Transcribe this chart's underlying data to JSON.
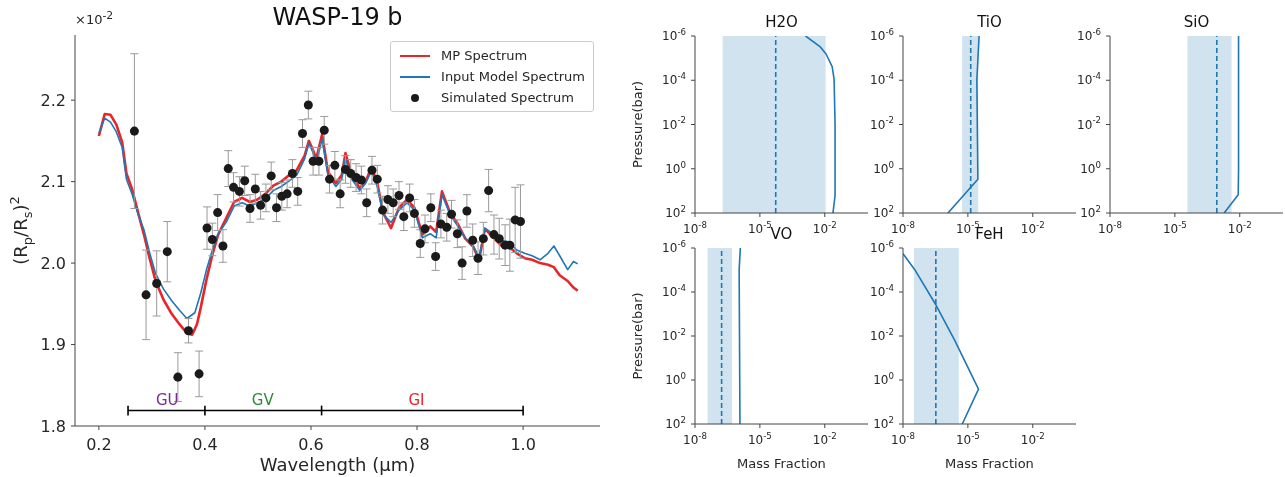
{
  "chart_data": [
    {
      "type": "line",
      "title": "WASP-19 b",
      "xlabel": "Wavelength (μm)",
      "ylabel": "(R$_{p}$/R$_{s}$)$^{2}$",
      "xlim": [
        0.155,
        1.145
      ],
      "ylim": [
        1.8,
        2.28
      ],
      "xticks": [
        0.2,
        0.4,
        0.6,
        0.8,
        {
          "value": 1,
          "label": "1.0"
        }
      ],
      "yticks": [
        1.8,
        1.9,
        {
          "value": 2,
          "label": "2.0"
        },
        2.1,
        2.2
      ],
      "legend": "top right",
      "annotations": [
        "×10$^{-2}$",
        {
          "text": "GU",
          "x": 0.329,
          "y": 1.819
        },
        {
          "text": "GV",
          "x": 0.509,
          "y": 1.819
        },
        {
          "text": "GI",
          "x": 0.799,
          "y": 1.819
        }
      ],
      "series": [
        {
          "name": "MP Spectrum",
          "type": "line",
          "color": "#e8262a",
          "x": [
            0.2,
            0.211,
            0.222,
            0.233,
            0.244,
            0.252,
            0.263,
            0.274,
            0.285,
            0.296,
            0.307,
            0.322,
            0.337,
            0.352,
            0.366,
            0.376,
            0.385,
            0.392,
            0.403,
            0.414,
            0.425,
            0.44,
            0.455,
            0.47,
            0.485,
            0.499,
            0.514,
            0.529,
            0.544,
            0.559,
            0.573,
            0.588,
            0.596,
            0.603,
            0.61,
            0.621,
            0.632,
            0.647,
            0.658,
            0.665,
            0.677,
            0.692,
            0.703,
            0.714,
            0.725,
            0.736,
            0.751,
            0.766,
            0.781,
            0.795,
            0.81,
            0.825,
            0.836,
            0.847,
            0.862,
            0.877,
            0.891,
            0.906,
            0.917,
            0.928,
            0.943,
            0.958,
            0.973,
            0.988,
            1.003,
            1.017,
            1.032,
            1.047,
            1.058,
            1.069,
            1.084,
            1.095,
            1.103
          ],
          "values": [
            2.156,
            2.183,
            2.182,
            2.17,
            2.148,
            2.11,
            2.09,
            2.062,
            2.035,
            2.005,
            1.978,
            1.955,
            1.938,
            1.925,
            1.914,
            1.912,
            1.925,
            1.945,
            1.98,
            2.01,
            2.035,
            2.055,
            2.075,
            2.08,
            2.075,
            2.078,
            2.085,
            2.095,
            2.1,
            2.108,
            2.114,
            2.132,
            2.15,
            2.14,
            2.128,
            2.158,
            2.112,
            2.098,
            2.108,
            2.135,
            2.108,
            2.092,
            2.1,
            2.118,
            2.098,
            2.062,
            2.043,
            2.068,
            2.078,
            2.068,
            2.035,
            2.045,
            2.038,
            2.088,
            2.062,
            2.048,
            2.03,
            2.02,
            2.004,
            2.042,
            2.032,
            2.022,
            2.02,
            2.012,
            2.006,
            2.004,
            2.0,
            1.998,
            1.995,
            1.985,
            1.978,
            1.97,
            1.966
          ]
        },
        {
          "name": "Input Model Spectrum",
          "type": "line",
          "color": "#1f77b4",
          "x": [
            0.2,
            0.211,
            0.222,
            0.233,
            0.244,
            0.252,
            0.263,
            0.274,
            0.285,
            0.296,
            0.307,
            0.322,
            0.337,
            0.352,
            0.366,
            0.381,
            0.392,
            0.403,
            0.414,
            0.425,
            0.44,
            0.455,
            0.47,
            0.485,
            0.499,
            0.514,
            0.529,
            0.544,
            0.559,
            0.573,
            0.588,
            0.596,
            0.603,
            0.61,
            0.621,
            0.632,
            0.647,
            0.658,
            0.665,
            0.677,
            0.692,
            0.703,
            0.714,
            0.725,
            0.736,
            0.751,
            0.766,
            0.781,
            0.795,
            0.81,
            0.825,
            0.836,
            0.847,
            0.862,
            0.877,
            0.891,
            0.906,
            0.917,
            0.928,
            0.943,
            0.958,
            0.973,
            0.988,
            1.003,
            1.017,
            1.032,
            1.047,
            1.058,
            1.069,
            1.084,
            1.095,
            1.103
          ],
          "values": [
            2.159,
            2.178,
            2.173,
            2.161,
            2.142,
            2.103,
            2.084,
            2.06,
            2.041,
            2.012,
            1.987,
            1.968,
            1.954,
            1.942,
            1.932,
            1.939,
            1.963,
            1.992,
            2.016,
            2.036,
            2.05,
            2.07,
            2.074,
            2.07,
            2.074,
            2.079,
            2.089,
            2.094,
            2.101,
            2.108,
            2.128,
            2.147,
            2.137,
            2.123,
            2.152,
            2.108,
            2.094,
            2.103,
            2.128,
            2.103,
            2.089,
            2.098,
            2.113,
            2.094,
            2.06,
            2.05,
            2.065,
            2.074,
            2.065,
            2.031,
            2.036,
            2.031,
            2.084,
            2.06,
            2.045,
            2.031,
            2.021,
            2.007,
            2.043,
            2.036,
            2.028,
            2.026,
            2.016,
            2.012,
            2.009,
            2.004,
            2.012,
            2.021,
            2.009,
            1.992,
            2.002,
            1.999
          ]
        },
        {
          "name": "Simulated Spectrum",
          "type": "scatter",
          "color": "#1a1a1a",
          "marker": "circle",
          "x": [
            0.267,
            0.289,
            0.309,
            0.329,
            0.349,
            0.369,
            0.389,
            0.404,
            0.414,
            0.424,
            0.434,
            0.444,
            0.454,
            0.465,
            0.475,
            0.485,
            0.495,
            0.505,
            0.515,
            0.525,
            0.535,
            0.545,
            0.555,
            0.565,
            0.575,
            0.584,
            0.595,
            0.604,
            0.615,
            0.625,
            0.635,
            0.645,
            0.655,
            0.665,
            0.675,
            0.685,
            0.695,
            0.705,
            0.715,
            0.725,
            0.735,
            0.745,
            0.755,
            0.766,
            0.775,
            0.786,
            0.795,
            0.806,
            0.815,
            0.826,
            0.835,
            0.845,
            0.856,
            0.865,
            0.876,
            0.885,
            0.894,
            0.905,
            0.915,
            0.925,
            0.935,
            0.945,
            0.955,
            0.966,
            0.975,
            0.985,
            0.995
          ],
          "values": [
            2.162,
            1.961,
            1.975,
            2.014,
            1.86,
            1.917,
            1.864,
            2.043,
            2.029,
            2.062,
            2.021,
            2.116,
            2.093,
            2.088,
            2.101,
            2.067,
            2.091,
            2.071,
            2.08,
            2.107,
            2.068,
            2.082,
            2.085,
            2.11,
            2.088,
            2.159,
            2.194,
            2.125,
            2.125,
            2.163,
            2.103,
            2.12,
            2.085,
            2.115,
            2.11,
            2.105,
            2.102,
            2.074,
            2.114,
            2.103,
            2.065,
            2.078,
            2.074,
            2.083,
            2.057,
            2.08,
            2.061,
            2.024,
            2.042,
            2.068,
            2.008,
            2.048,
            2.044,
            2.06,
            2.036,
            2.0,
            2.064,
            2.028,
            2.006,
            2.03,
            2.089,
            2.035,
            2.03,
            2.022,
            2.022,
            2.053,
            2.051
          ],
          "errors": [
            0.095,
            0.055,
            0.04,
            0.037,
            0.03,
            0.015,
            0.028,
            0.026,
            0.02,
            0.022,
            0.02,
            0.022,
            0.018,
            0.018,
            0.018,
            0.017,
            0.018,
            0.017,
            0.017,
            0.017,
            0.017,
            0.017,
            0.017,
            0.017,
            0.017,
            0.017,
            0.017,
            0.017,
            0.017,
            0.017,
            0.017,
            0.017,
            0.017,
            0.017,
            0.017,
            0.017,
            0.017,
            0.017,
            0.017,
            0.017,
            0.017,
            0.017,
            0.017,
            0.017,
            0.017,
            0.017,
            0.017,
            0.017,
            0.017,
            0.017,
            0.017,
            0.017,
            0.017,
            0.017,
            0.017,
            0.02,
            0.02,
            0.02,
            0.02,
            0.02,
            0.026,
            0.024,
            0.025,
            0.025,
            0.032,
            0.04,
            0.045
          ]
        },
        {
          "type": "line",
          "color": "#000000",
          "x": [
            0.255,
            0.4,
            0.62,
            1.0
          ],
          "values": [
            1.819,
            1.819,
            1.819,
            1.819
          ],
          "errors": [
            0.006,
            0.006,
            0.006,
            0.006
          ]
        }
      ]
    },
    {
      "type": "line",
      "title": "H2O",
      "ylabel": "Pressure(bar)",
      "log": "xy",
      "xlim": [
        1e-08,
        1
      ],
      "ylim": [
        100,
        1e-06
      ],
      "xticks": [
        {
          "value": 1e-08,
          "label": "10$^{-8}$"
        },
        {
          "value": 1e-05,
          "label": "10$^{-5}$"
        },
        {
          "value": 0.01,
          "label": "10$^{-2}$"
        }
      ],
      "yticks": [
        {
          "value": 1e-06,
          "label": "10$^{-6}$"
        },
        {
          "value": 0.0001,
          "label": "10$^{-4}$"
        },
        {
          "value": 0.01,
          "label": "10$^{-2}$"
        },
        {
          "value": 1,
          "label": "10$^{0}$"
        },
        {
          "value": 100,
          "label": "10$^{2}$"
        }
      ],
      "bands": [
        {
          "axis": "x",
          "from": 1.9e-07,
          "to": 0.011,
          "color": "#d2e3f0"
        }
      ],
      "ref_lines": [
        {
          "axis": "x",
          "value": 5.4e-05,
          "color": "#1f77b4",
          "line_style": "dashed"
        }
      ],
      "series": [
        {
          "type": "line",
          "color": "#1f77b4",
          "x": [
            0.0013,
            0.006,
            0.0115,
            0.022,
            0.027,
            0.03,
            0.03,
            0.024
          ],
          "values": [
            1e-06,
            3e-06,
            6.5e-06,
            2.4e-05,
            9e-05,
            0.01,
            16,
            100
          ]
        }
      ]
    },
    {
      "type": "line",
      "title": "TiO",
      "log": "xy",
      "xlim": [
        1e-08,
        1
      ],
      "ylim": [
        100,
        1e-06
      ],
      "xticks": [
        {
          "value": 1e-08,
          "label": "10$^{-8}$"
        },
        {
          "value": 1e-05,
          "label": "10$^{-5}$"
        },
        {
          "value": 0.01,
          "label": "10$^{-2}$"
        }
      ],
      "yticks": [
        {
          "value": 1e-06,
          "label": "10$^{-6}$"
        },
        {
          "value": 0.0001,
          "label": "10$^{-4}$"
        },
        {
          "value": 0.01,
          "label": "10$^{-2}$"
        },
        {
          "value": 1,
          "label": "10$^{0}$"
        },
        {
          "value": 100,
          "label": "10$^{2}$"
        }
      ],
      "bands": [
        {
          "axis": "x",
          "from": 5.4e-06,
          "to": 3e-05,
          "color": "#d2e3f0"
        }
      ],
      "ref_lines": [
        {
          "axis": "x",
          "value": 1.35e-05,
          "color": "#1f77b4",
          "line_style": "dashed"
        }
      ],
      "series": [
        {
          "type": "line",
          "color": "#1f77b4",
          "x": [
            3.3e-05,
            2.6e-05,
            2.8e-05,
            2.9e-05,
            1.2e-06
          ],
          "values": [
            1e-06,
            0.0001,
            0.1,
            3,
            100
          ]
        }
      ]
    },
    {
      "type": "line",
      "title": "SiO",
      "log": "xy",
      "xlim": [
        1e-08,
        1
      ],
      "ylim": [
        100,
        1e-06
      ],
      "xticks": [
        {
          "value": 1e-08,
          "label": "10$^{-8}$"
        },
        {
          "value": 1e-05,
          "label": "10$^{-5}$"
        },
        {
          "value": 0.01,
          "label": "10$^{-2}$"
        }
      ],
      "yticks": [
        {
          "value": 1e-06,
          "label": "10$^{-6}$"
        },
        {
          "value": 0.0001,
          "label": "10$^{-4}$"
        },
        {
          "value": 0.01,
          "label": "10$^{-2}$"
        },
        {
          "value": 1,
          "label": "10$^{0}$"
        },
        {
          "value": 100,
          "label": "10$^{2}$"
        }
      ],
      "bands": [
        {
          "axis": "x",
          "from": 3.8e-05,
          "to": 0.0042,
          "color": "#d2e3f0"
        }
      ],
      "ref_lines": [
        {
          "axis": "x",
          "value": 0.00087,
          "color": "#1f77b4",
          "line_style": "dashed"
        }
      ],
      "series": [
        {
          "type": "line",
          "color": "#1f77b4",
          "x": [
            0.0088,
            0.0088,
            0.0085,
            0.0019
          ],
          "values": [
            1e-06,
            1,
            15,
            100
          ]
        }
      ]
    },
    {
      "type": "line",
      "title": "VO",
      "xlabel": "Mass Fraction",
      "ylabel": "Pressure(bar)",
      "log": "xy",
      "xlim": [
        1e-08,
        1
      ],
      "ylim": [
        100,
        1e-06
      ],
      "xticks": [
        {
          "value": 1e-08,
          "label": "10$^{-8}$"
        },
        {
          "value": 1e-05,
          "label": "10$^{-5}$"
        },
        {
          "value": 0.01,
          "label": "10$^{-2}$"
        }
      ],
      "yticks": [
        {
          "value": 1e-06,
          "label": "10$^{-6}$"
        },
        {
          "value": 0.0001,
          "label": "10$^{-4}$"
        },
        {
          "value": 0.01,
          "label": "10$^{-2}$"
        },
        {
          "value": 1,
          "label": "10$^{0}$"
        },
        {
          "value": 100,
          "label": "10$^{2}$"
        }
      ],
      "bands": [
        {
          "axis": "x",
          "from": 3.8e-08,
          "to": 5.2e-07,
          "color": "#d2e3f0"
        }
      ],
      "ref_lines": [
        {
          "axis": "x",
          "value": 1.7e-07,
          "color": "#1f77b4",
          "line_style": "dashed"
        }
      ],
      "series": [
        {
          "type": "line",
          "color": "#1f77b4",
          "x": [
            1.25e-06,
            1.1e-06,
            1.2e-06
          ],
          "values": [
            1e-06,
            1e-05,
            100
          ]
        }
      ]
    },
    {
      "type": "line",
      "title": "FeH",
      "xlabel": "Mass Fraction",
      "log": "xy",
      "xlim": [
        1e-08,
        1
      ],
      "ylim": [
        100,
        1e-06
      ],
      "xticks": [
        {
          "value": 1e-08,
          "label": "10$^{-8}$"
        },
        {
          "value": 1e-05,
          "label": "10$^{-5}$"
        },
        {
          "value": 0.01,
          "label": "10$^{-2}$"
        }
      ],
      "yticks": [
        {
          "value": 1e-06,
          "label": "10$^{-6}$"
        },
        {
          "value": 0.0001,
          "label": "10$^{-4}$"
        },
        {
          "value": 0.01,
          "label": "10$^{-2}$"
        },
        {
          "value": 1,
          "label": "10$^{0}$"
        },
        {
          "value": 100,
          "label": "10$^{2}$"
        }
      ],
      "bands": [
        {
          "axis": "x",
          "from": 3.2e-08,
          "to": 3.8e-06,
          "color": "#d2e3f0"
        }
      ],
      "ref_lines": [
        {
          "axis": "x",
          "value": 3.3e-07,
          "color": "#1f77b4",
          "line_style": "dashed"
        }
      ],
      "series": [
        {
          "type": "line",
          "color": "#1f77b4",
          "x": [
            1e-08,
            3.5e-08,
            3.3e-07,
            2.4e-06,
            3.1e-05,
            5.5e-06
          ],
          "values": [
            1.8e-06,
            9.7e-06,
            0.00038,
            0.015,
            2.6,
            100
          ]
        }
      ]
    }
  ]
}
